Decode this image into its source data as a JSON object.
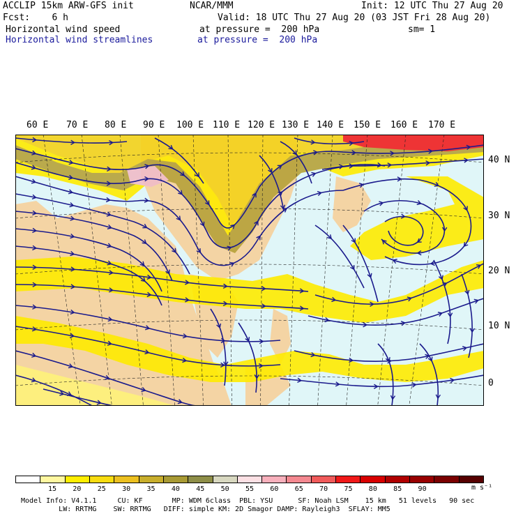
{
  "header": {
    "line1_left": "ACCLIP 15km ARW-GFS init",
    "line1_center": "NCAR/MMM",
    "line1_right": "Init: 12 UTC Thu 27 Aug 20",
    "line2_left": "Fcst:    6 h",
    "line2_right": "Valid: 18 UTC Thu 27 Aug 20 (03 JST Fri 28 Aug 20)",
    "line3_left": "Horizontal wind speed",
    "line3_center": "at pressure =  200 hPa",
    "line3_right": "sm= 1",
    "line4_left": "Horizontal wind streamlines",
    "line4_center": "at pressure =  200 hPa"
  },
  "map": {
    "lon_labels": [
      "60 E",
      "70 E",
      "80 E",
      "90 E",
      "100 E",
      "110 E",
      "120 E",
      "130 E",
      "140 E",
      "150 E",
      "160 E",
      "170 E"
    ],
    "lat_labels": [
      "40 N",
      "30 N",
      "20 N",
      "10 N",
      "0"
    ],
    "colors": {
      "ocean": "#e0f6f8",
      "land": "#f4d4a4",
      "speed_15_20": "#fff27a",
      "speed_20_25": "#ffeb00",
      "speed_25_30": "#f4d21a",
      "speed_30_35": "#dcb93a",
      "speed_35_40": "#b6a23a",
      "speed_40_45": "#9a9650",
      "speed_45_50": "#bdb88c",
      "speed_50_60": "#f0bcc8",
      "speed_70_80": "#f02020",
      "streamline": "#1a1a8c"
    }
  },
  "colorbar": {
    "colors": [
      "#ffffff",
      "#fff7a0",
      "#ffee00",
      "#f8dc10",
      "#ecc020",
      "#c8ae2c",
      "#a89a34",
      "#8e8e48",
      "#d8d8c0",
      "#fce0e4",
      "#f8b0bc",
      "#f48890",
      "#f05a5a",
      "#f01818",
      "#d80000",
      "#b00000",
      "#980000",
      "#7a0000",
      "#560000"
    ],
    "ticks": [
      "15",
      "20",
      "25",
      "30",
      "35",
      "40",
      "45",
      "50",
      "55",
      "60",
      "65",
      "70",
      "75",
      "80",
      "85",
      "90"
    ],
    "units": "m s⁻¹"
  },
  "footer": {
    "line1": "Model Info: V4.1.1     CU: KF       MP: WDM 6class  PBL: YSU      SF: Noah LSM    15 km   51 levels   90 sec",
    "line2": "         LW: RRTMG    SW: RRTMG   DIFF: simple KM: 2D Smagor DAMP: Rayleigh3  SFLAY: MM5"
  }
}
